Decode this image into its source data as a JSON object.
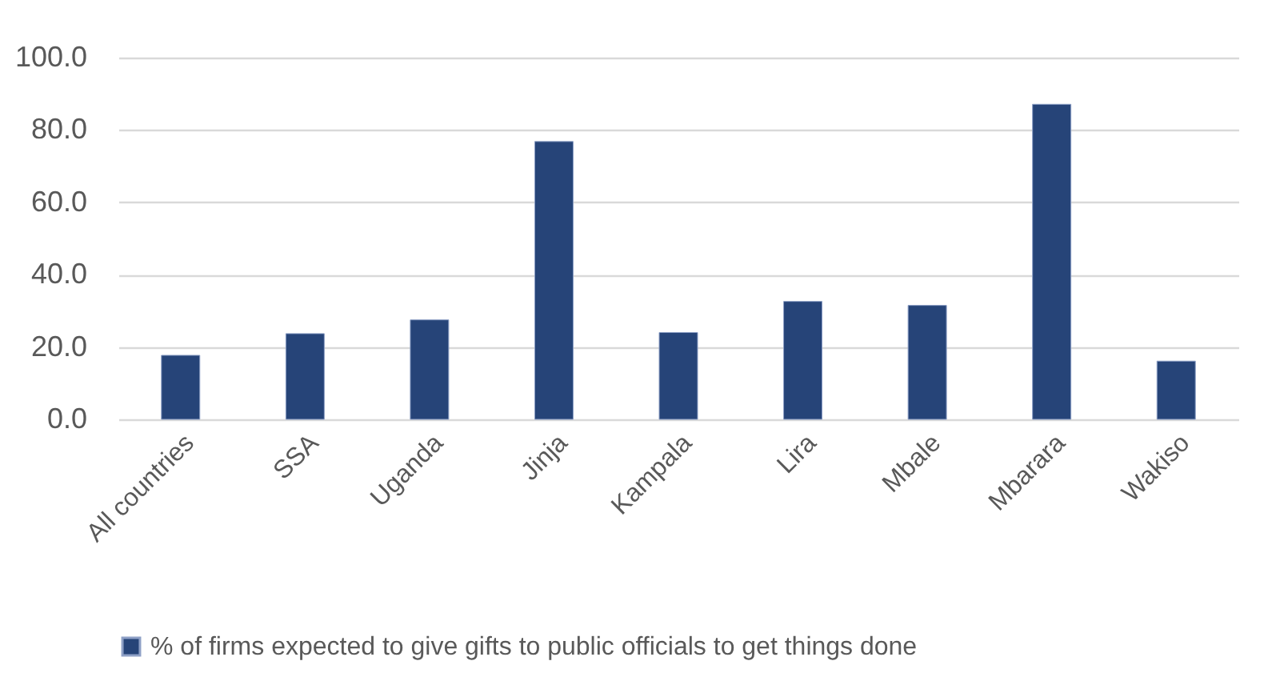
{
  "chart_data": {
    "type": "bar",
    "categories": [
      "All countries",
      "SSA",
      "Uganda",
      "Jinja",
      "Kampala",
      "Lira",
      "Mbale",
      "Mbarara",
      "Wakiso"
    ],
    "series": [
      {
        "name": "% of firms expected to give gifts to public officials to get things done",
        "color": "#264478",
        "values": [
          17.7,
          23.7,
          27.5,
          76.8,
          24.0,
          32.6,
          31.5,
          87.1,
          16.1
        ]
      }
    ],
    "ylim": [
      0,
      100
    ],
    "yticks": [
      {
        "value": 0,
        "label": "0.0"
      },
      {
        "value": 20,
        "label": "20.0"
      },
      {
        "value": 40,
        "label": "40.0"
      },
      {
        "value": 60,
        "label": "60.0"
      },
      {
        "value": 80,
        "label": "80.0"
      },
      {
        "value": 100,
        "label": "100.0"
      }
    ],
    "grid": true,
    "legend": "bottom"
  }
}
